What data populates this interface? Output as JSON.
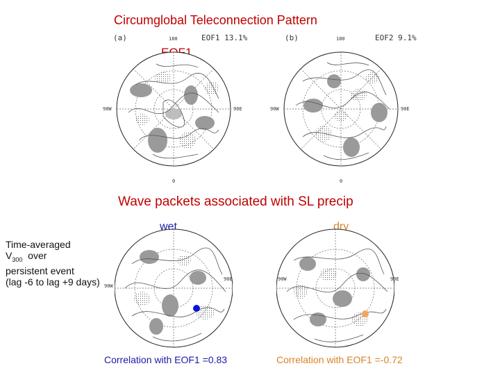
{
  "header": {
    "title": "Circumglobal Teleconnection Pattern",
    "eof1_label": "EOF1"
  },
  "top_panels": [
    {
      "tag": "(a)",
      "caption": "EOF1  13.1%",
      "lon_top": "180",
      "lon_left": "90W",
      "lon_right": "90E",
      "lon_bottom": "0"
    },
    {
      "tag": "(b)",
      "caption": "EOF2  9.1%",
      "lon_top": "180",
      "lon_left": "90W",
      "lon_right": "90E",
      "lon_bottom": "0"
    }
  ],
  "lower_section": {
    "title": "Wave packets associated with SL precip",
    "wet_label": "wet",
    "dry_label": "dry",
    "side_note_lines": [
      "Time-averaged",
      "V",
      "300",
      "over",
      "persistent event",
      "(lag -6 to lag +9 days)"
    ],
    "wet_lon_left": "90W",
    "wet_lon_right": "90E",
    "dry_lon_left": "90W",
    "dry_lon_right": "90E",
    "corr_prefix": "Correlation with",
    "corr_eof": "EOF1",
    "wet_corr_value": "=0.83",
    "dry_corr_value": "=-0.72"
  },
  "colors": {
    "title_red": "#c00000",
    "wet_blue": "#1a1aa6",
    "dry_orange": "#d9822b",
    "wet_marker": "#0b14d6",
    "dry_marker": "#f4a460"
  }
}
